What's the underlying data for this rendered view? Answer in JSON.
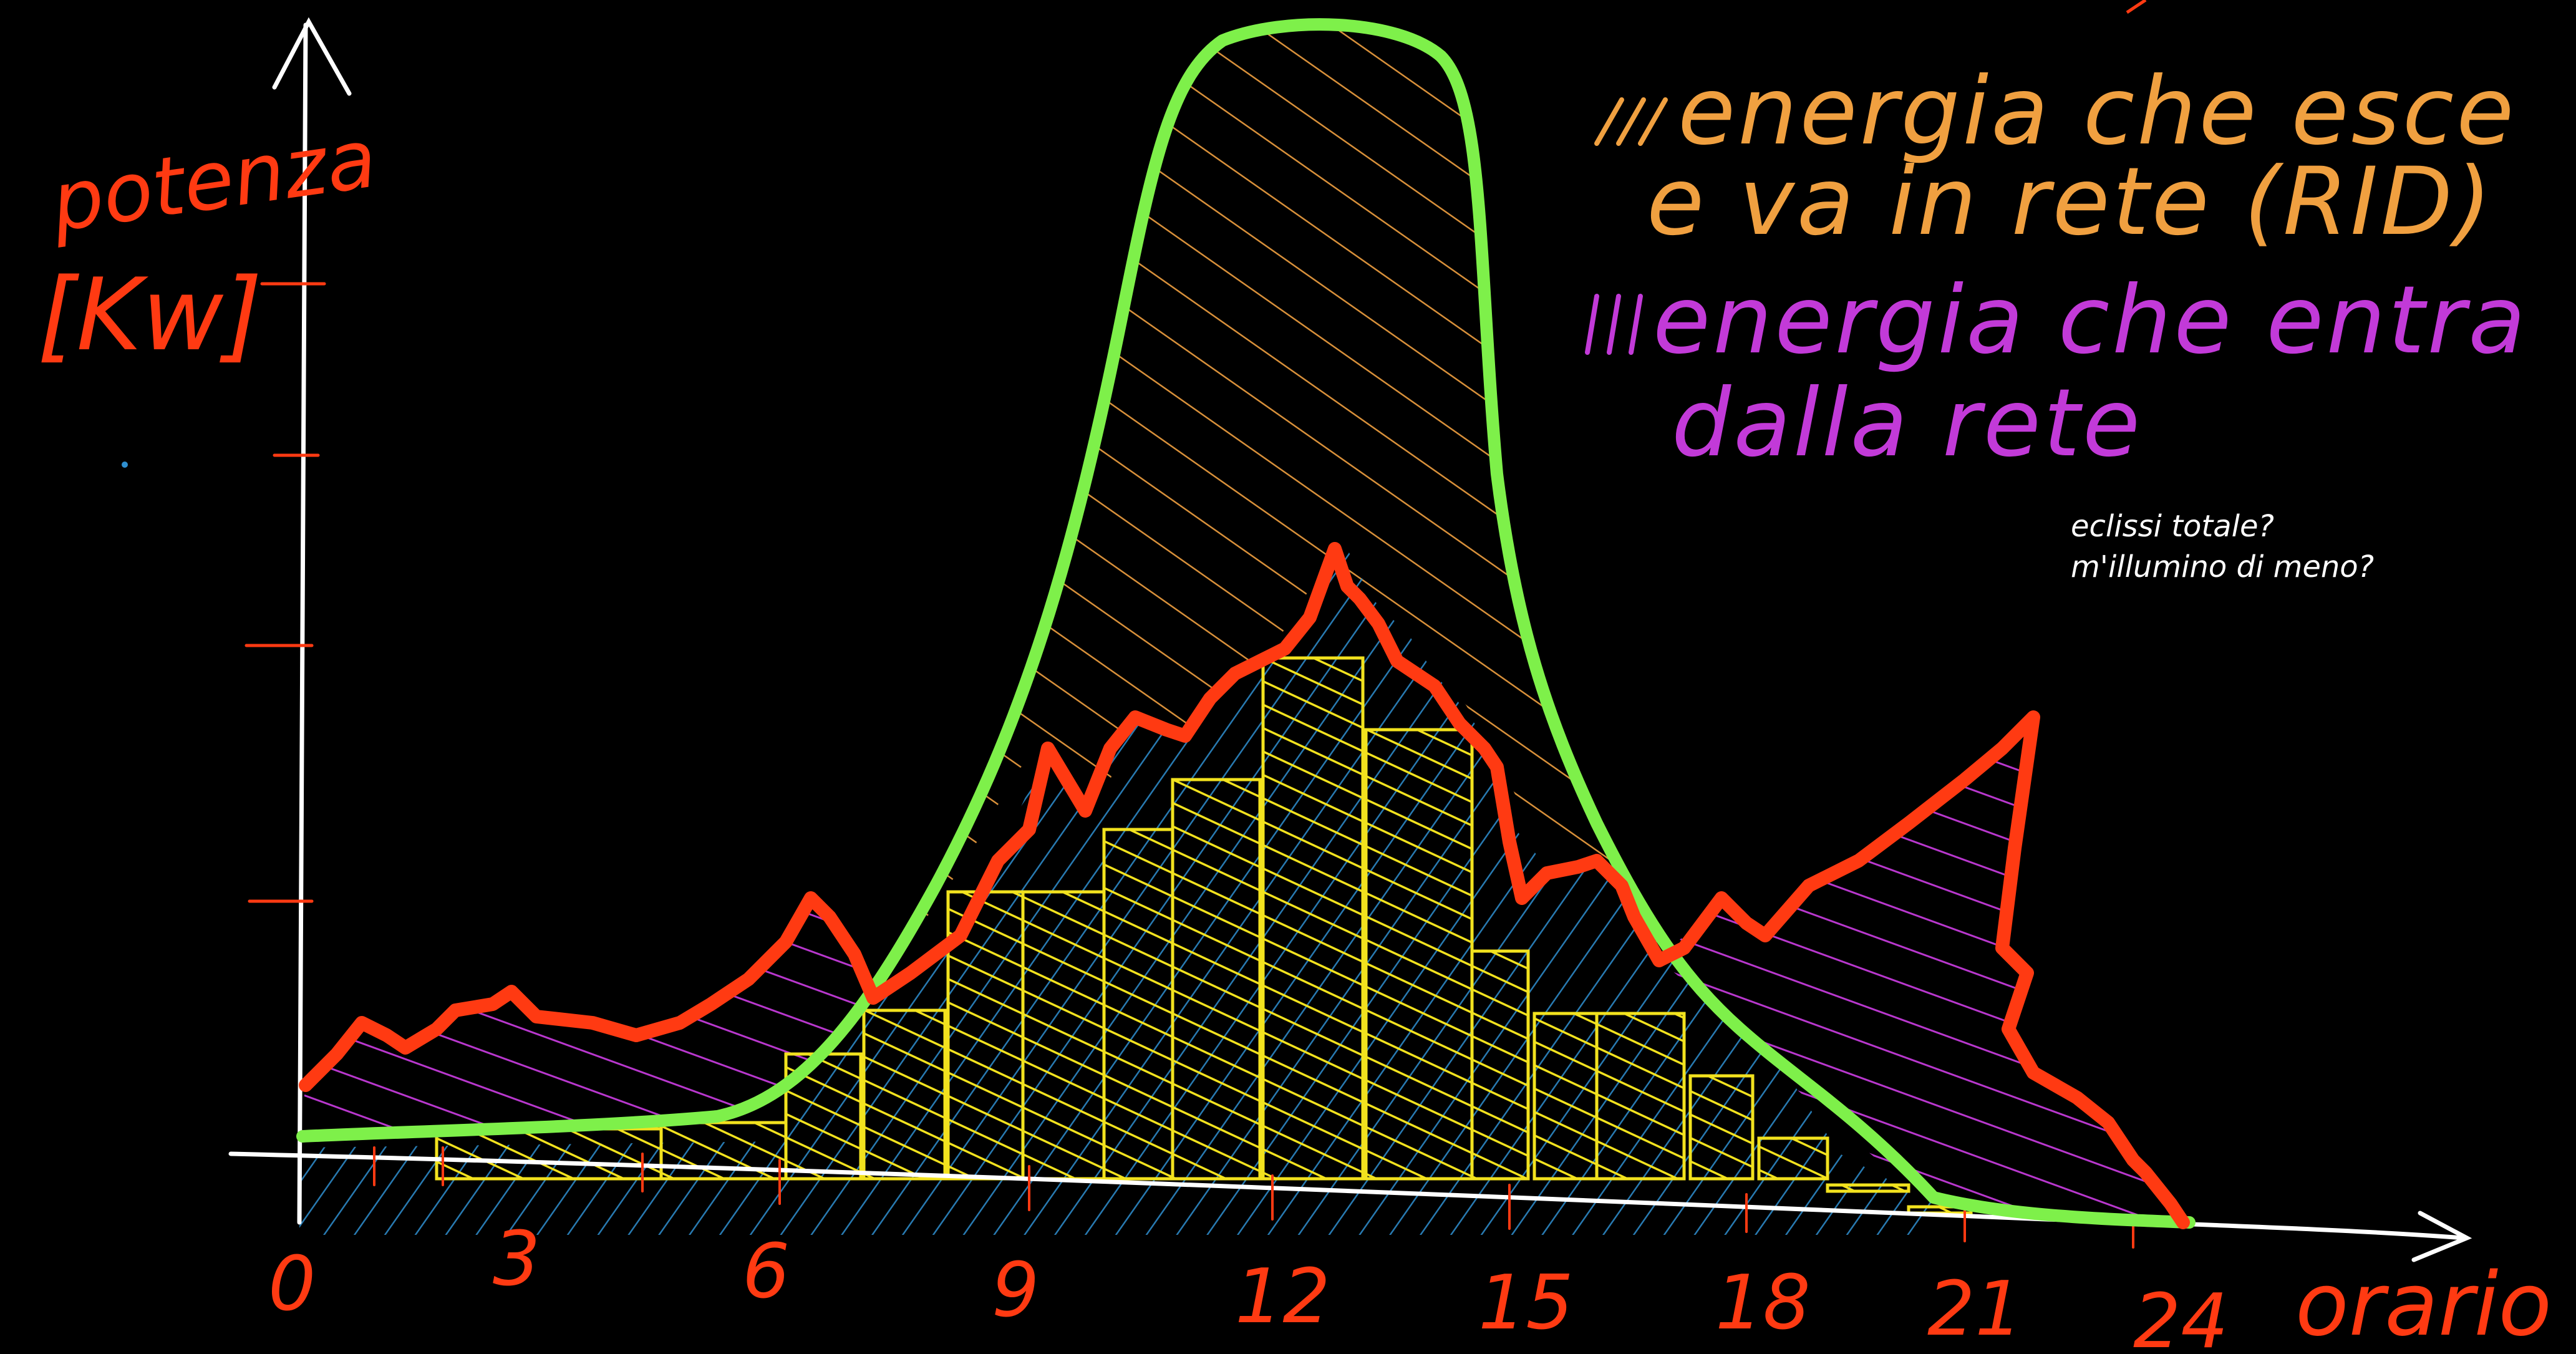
{
  "y_axis": {
    "label_line1": "potenza",
    "label_line2": "[Kw]"
  },
  "x_axis": {
    "label": "orario",
    "ticks": [
      "0",
      "3",
      "6",
      "9",
      "12",
      "15",
      "18",
      "21",
      "24"
    ]
  },
  "legend": {
    "out_line1": "energia che esce",
    "out_line2": "e va in rete (RID)",
    "in_line1": "energia che entra",
    "in_line2": "dalla rete"
  },
  "notes": {
    "line1": "eclissi totale?",
    "line2": "m'illumino di meno?"
  },
  "colors": {
    "production": "#7ef04a",
    "consumption": "#ff3a12",
    "self_consumed": "#f2e21e",
    "to_grid_hatch": "#f0a040",
    "from_grid_hatch": "#c23ad8",
    "blue_fill": "#2f8fd0",
    "axes": "#ffffff",
    "labels": "#ff3a12"
  }
}
